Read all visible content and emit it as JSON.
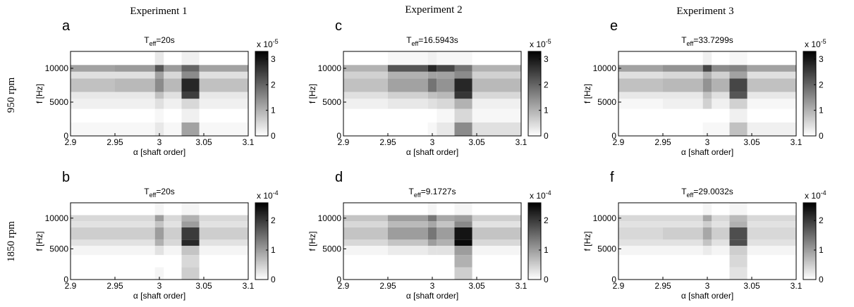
{
  "column_headers": [
    "Experiment 1",
    "Experiment 2",
    "Experiment 3"
  ],
  "row_labels": [
    "950 rpm",
    "1850 rpm"
  ],
  "chart_data": [
    {
      "type": "heatmap",
      "panel_label": "a",
      "title": [
        "T",
        "eff",
        "=20s"
      ],
      "xlabel": "α [shaft order]",
      "ylabel": "f [Hz]",
      "xlim": [
        2.9,
        3.1
      ],
      "xticks": [
        2.9,
        2.95,
        3,
        3.05,
        3.1
      ],
      "ylim": [
        0,
        12500
      ],
      "yticks": [
        0,
        5000,
        10000
      ],
      "x_edges": [
        2.9,
        2.95,
        2.995,
        3.005,
        3.025,
        3.045,
        3.1
      ],
      "y_edges": [
        0,
        2000,
        4000,
        5500,
        6500,
        8500,
        9500,
        10500,
        12500
      ],
      "z": [
        [
          0.1,
          0.1,
          0.3,
          0.1,
          1.2,
          0.1
        ],
        [
          0,
          0,
          0.1,
          0,
          0.2,
          0
        ],
        [
          0.2,
          0.2,
          0.4,
          0.2,
          0.5,
          0.2
        ],
        [
          0.3,
          0.3,
          0.8,
          0.4,
          2.5,
          0.3
        ],
        [
          0.8,
          0.9,
          1.5,
          0.9,
          2.8,
          0.8
        ],
        [
          0.4,
          0.4,
          1.2,
          0.5,
          1.5,
          0.4
        ],
        [
          1.2,
          1.3,
          2.2,
          1.3,
          2.0,
          1.2
        ],
        [
          0,
          0,
          0.3,
          0,
          0.2,
          0
        ]
      ],
      "colorbar": {
        "lim": [
          0,
          3.3
        ],
        "ticks": [
          0,
          1,
          2,
          3
        ],
        "multiplier": [
          "x 10",
          "-5"
        ]
      }
    },
    {
      "type": "heatmap",
      "panel_label": "c",
      "title": [
        "T",
        "eff",
        "=16.5943s"
      ],
      "xlabel": "α [shaft order]",
      "ylabel": "f [Hz]",
      "xlim": [
        2.9,
        3.1
      ],
      "xticks": [
        2.9,
        2.95,
        3,
        3.05,
        3.1
      ],
      "ylim": [
        0,
        12500
      ],
      "yticks": [
        0,
        5000,
        10000
      ],
      "x_edges": [
        2.9,
        2.95,
        2.995,
        3.005,
        3.025,
        3.045,
        3.1
      ],
      "y_edges": [
        0,
        2000,
        4000,
        5500,
        6500,
        8500,
        9500,
        10500,
        12500
      ],
      "z": [
        [
          0,
          0,
          0.1,
          0.3,
          1.5,
          0.4
        ],
        [
          0,
          0,
          0,
          0.1,
          0.5,
          0.1
        ],
        [
          0.2,
          0.3,
          0.4,
          0.5,
          1.0,
          0.2
        ],
        [
          0.4,
          0.6,
          0.8,
          0.9,
          2.6,
          0.5
        ],
        [
          0.8,
          1.2,
          1.8,
          1.4,
          2.8,
          0.9
        ],
        [
          0.6,
          1.0,
          1.2,
          1.2,
          1.5,
          0.6
        ],
        [
          1.0,
          2.2,
          2.8,
          2.4,
          1.8,
          1.0
        ],
        [
          0,
          0.1,
          0.2,
          0.1,
          0.1,
          0
        ]
      ],
      "colorbar": {
        "lim": [
          0,
          3.3
        ],
        "ticks": [
          0,
          1,
          2,
          3
        ],
        "multiplier": [
          "x 10",
          "-5"
        ]
      }
    },
    {
      "type": "heatmap",
      "panel_label": "e",
      "title": [
        "T",
        "eff",
        "=33.7299s"
      ],
      "xlabel": "α [shaft order]",
      "ylabel": "f [Hz]",
      "xlim": [
        2.9,
        3.1
      ],
      "xticks": [
        2.9,
        2.95,
        3,
        3.05,
        3.1
      ],
      "ylim": [
        0,
        12500
      ],
      "yticks": [
        0,
        5000,
        10000
      ],
      "x_edges": [
        2.9,
        2.95,
        2.995,
        3.005,
        3.025,
        3.045,
        3.1
      ],
      "y_edges": [
        0,
        2000,
        4000,
        5500,
        6500,
        8500,
        9500,
        10500,
        12500
      ],
      "z": [
        [
          0,
          0,
          0.1,
          0.1,
          0.8,
          0.2
        ],
        [
          0,
          0,
          0,
          0,
          0.2,
          0
        ],
        [
          0.1,
          0.2,
          0.6,
          0.2,
          0.6,
          0.1
        ],
        [
          0.3,
          0.3,
          0.8,
          0.4,
          2.2,
          0.3
        ],
        [
          0.8,
          0.9,
          1.4,
          1.0,
          2.4,
          0.8
        ],
        [
          0.4,
          0.5,
          1.0,
          0.6,
          1.2,
          0.4
        ],
        [
          1.2,
          1.4,
          2.4,
          1.5,
          1.6,
          1.2
        ],
        [
          0,
          0,
          0.2,
          0,
          0.1,
          0
        ]
      ],
      "colorbar": {
        "lim": [
          0,
          3.3
        ],
        "ticks": [
          0,
          1,
          2,
          3
        ],
        "multiplier": [
          "x 10",
          "-5"
        ]
      }
    },
    {
      "type": "heatmap",
      "panel_label": "b",
      "title": [
        "T",
        "eff",
        "=20s"
      ],
      "xlabel": "α [shaft order]",
      "ylabel": "f [Hz]",
      "xlim": [
        2.9,
        3.1
      ],
      "xticks": [
        2.9,
        2.95,
        3,
        3.05,
        3.1
      ],
      "ylim": [
        0,
        12500
      ],
      "yticks": [
        0,
        5000,
        10000
      ],
      "x_edges": [
        2.9,
        2.95,
        2.995,
        3.005,
        3.025,
        3.045,
        3.1
      ],
      "y_edges": [
        0,
        2000,
        4000,
        5500,
        6500,
        8500,
        9500,
        10500,
        12500
      ],
      "z": [
        [
          0,
          0,
          0.1,
          0,
          0.5,
          0
        ],
        [
          0,
          0,
          0,
          0,
          0.4,
          0
        ],
        [
          0.1,
          0.1,
          0.3,
          0.1,
          0.6,
          0.1
        ],
        [
          0.3,
          0.3,
          0.8,
          0.4,
          2.2,
          0.3
        ],
        [
          0.5,
          0.5,
          1.0,
          0.5,
          2.0,
          0.5
        ],
        [
          0.3,
          0.3,
          0.6,
          0.3,
          1.0,
          0.3
        ],
        [
          0.4,
          0.4,
          1.0,
          0.4,
          0.8,
          0.4
        ],
        [
          0,
          0,
          0.1,
          0,
          0.1,
          0
        ]
      ],
      "colorbar": {
        "lim": [
          0,
          2.6
        ],
        "ticks": [
          0,
          1,
          2
        ],
        "multiplier": [
          "x 10",
          "-4"
        ]
      }
    },
    {
      "type": "heatmap",
      "panel_label": "d",
      "title": [
        "T",
        "eff",
        "=9.1727s"
      ],
      "xlabel": "α [shaft order]",
      "ylabel": "f [Hz]",
      "xlim": [
        2.9,
        3.1
      ],
      "xticks": [
        2.9,
        2.95,
        3,
        3.05,
        3.1
      ],
      "ylim": [
        0,
        12500
      ],
      "yticks": [
        0,
        5000,
        10000
      ],
      "x_edges": [
        2.9,
        2.95,
        2.995,
        3.005,
        3.025,
        3.045,
        3.1
      ],
      "y_edges": [
        0,
        2000,
        4000,
        5500,
        6500,
        8500,
        9500,
        10500,
        12500
      ],
      "z": [
        [
          0,
          0,
          0,
          0,
          0.5,
          0
        ],
        [
          0,
          0,
          0,
          0,
          0.8,
          0
        ],
        [
          0.1,
          0.2,
          0.3,
          0.3,
          1.0,
          0.1
        ],
        [
          0.4,
          0.6,
          1.0,
          0.8,
          2.5,
          0.4
        ],
        [
          0.6,
          1.0,
          1.4,
          1.0,
          2.4,
          0.6
        ],
        [
          0.4,
          0.7,
          0.9,
          0.6,
          1.2,
          0.3
        ],
        [
          0.6,
          1.0,
          1.4,
          0.9,
          1.0,
          0.5
        ],
        [
          0,
          0,
          0.1,
          0,
          0.1,
          0
        ]
      ],
      "colorbar": {
        "lim": [
          0,
          2.6
        ],
        "ticks": [
          0,
          1,
          2
        ],
        "multiplier": [
          "x 10",
          "-4"
        ]
      }
    },
    {
      "type": "heatmap",
      "panel_label": "f",
      "title": [
        "T",
        "eff",
        "=29.0032s"
      ],
      "xlabel": "α [shaft order]",
      "ylabel": "f [Hz]",
      "xlim": [
        2.9,
        3.1
      ],
      "xticks": [
        2.9,
        2.95,
        3,
        3.05,
        3.1
      ],
      "ylim": [
        0,
        12500
      ],
      "yticks": [
        0,
        5000,
        10000
      ],
      "x_edges": [
        2.9,
        2.95,
        2.995,
        3.005,
        3.025,
        3.045,
        3.1
      ],
      "y_edges": [
        0,
        2000,
        4000,
        5500,
        6500,
        8500,
        9500,
        10500,
        12500
      ],
      "z": [
        [
          0,
          0,
          0,
          0,
          0.3,
          0
        ],
        [
          0,
          0,
          0,
          0,
          0.4,
          0
        ],
        [
          0.1,
          0.1,
          0.2,
          0.1,
          0.5,
          0.1
        ],
        [
          0.3,
          0.3,
          0.6,
          0.3,
          1.8,
          0.3
        ],
        [
          0.4,
          0.5,
          0.9,
          0.5,
          1.8,
          0.4
        ],
        [
          0.3,
          0.3,
          0.5,
          0.3,
          0.8,
          0.3
        ],
        [
          0.4,
          0.4,
          0.9,
          0.4,
          0.7,
          0.4
        ],
        [
          0,
          0,
          0.1,
          0,
          0.1,
          0
        ]
      ],
      "colorbar": {
        "lim": [
          0,
          2.6
        ],
        "ticks": [
          0,
          1,
          2
        ],
        "multiplier": [
          "x 10",
          "-4"
        ]
      }
    }
  ]
}
